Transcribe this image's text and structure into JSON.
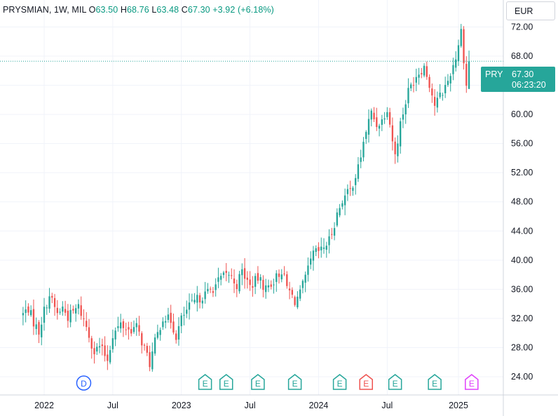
{
  "legend": {
    "symbol": "PRYSMIAN, 1W, MIL",
    "open_label": "O",
    "open": "63.50",
    "high_label": "H",
    "high": "68.76",
    "low_label": "L",
    "low": "63.48",
    "close_label": "C",
    "close": "67.30",
    "change": "+3.92 (+6.18%)"
  },
  "currency": "EUR",
  "price_tag": {
    "symbol": "PRY",
    "price": "67.30",
    "countdown": "06:23:20"
  },
  "colors": {
    "up": "#26a69a",
    "down": "#ef5350",
    "grid": "#f0f3fa",
    "axis_text": "#131722",
    "dividend": "#2962ff",
    "earnings_purple": "#e040fb"
  },
  "chart_data": {
    "type": "candlestick",
    "title": "",
    "ylim": [
      21.5,
      75.7
    ],
    "y_ticks": [
      "24.00",
      "28.00",
      "32.00",
      "36.00",
      "40.00",
      "44.00",
      "48.00",
      "52.00",
      "56.00",
      "60.00",
      "64.00",
      "68.00",
      "72.00"
    ],
    "x_ticks": [
      "2022",
      "Jul",
      "2023",
      "Jul",
      "2024",
      "Jul",
      "2025"
    ],
    "x_tick_dates": [
      "2022-01-03",
      "2022-07-04",
      "2023-01-02",
      "2023-07-03",
      "2024-01-01",
      "2024-07-01",
      "2025-01-06"
    ],
    "close_path": [
      [
        "2021-11-08",
        32.6
      ],
      [
        "2021-11-22",
        33.4
      ],
      [
        "2021-12-06",
        31.5
      ],
      [
        "2021-12-20",
        30.2
      ],
      [
        "2022-01-03",
        33.1
      ],
      [
        "2022-01-17",
        35.2
      ],
      [
        "2022-02-07",
        32.6
      ],
      [
        "2022-02-21",
        33.5
      ],
      [
        "2022-03-07",
        32.2
      ],
      [
        "2022-04-04",
        33.6
      ],
      [
        "2022-04-25",
        30.9
      ],
      [
        "2022-05-16",
        27.4
      ],
      [
        "2022-05-30",
        28.2
      ],
      [
        "2022-06-20",
        26.4
      ],
      [
        "2022-07-04",
        29.8
      ],
      [
        "2022-07-25",
        31.2
      ],
      [
        "2022-08-15",
        30.4
      ],
      [
        "2022-09-05",
        30.8
      ],
      [
        "2022-09-26",
        27.9
      ],
      [
        "2022-10-10",
        25.8
      ],
      [
        "2022-10-24",
        28.7
      ],
      [
        "2022-11-14",
        32.2
      ],
      [
        "2022-12-05",
        31.7
      ],
      [
        "2022-12-19",
        29.6
      ],
      [
        "2023-01-02",
        31.9
      ],
      [
        "2023-01-23",
        33.6
      ],
      [
        "2023-02-13",
        34.6
      ],
      [
        "2023-03-06",
        35.3
      ],
      [
        "2023-03-27",
        36.2
      ],
      [
        "2023-04-17",
        37.5
      ],
      [
        "2023-05-08",
        38.1
      ],
      [
        "2023-05-29",
        36.6
      ],
      [
        "2023-06-12",
        38.5
      ],
      [
        "2023-07-03",
        36.4
      ],
      [
        "2023-07-24",
        37.5
      ],
      [
        "2023-08-14",
        36.1
      ],
      [
        "2023-09-04",
        37.2
      ],
      [
        "2023-09-25",
        38.6
      ],
      [
        "2023-10-09",
        36.3
      ],
      [
        "2023-10-30",
        34.4
      ],
      [
        "2023-11-13",
        35.4
      ],
      [
        "2023-12-04",
        38.6
      ],
      [
        "2023-12-18",
        40.9
      ],
      [
        "2024-01-08",
        41.3
      ],
      [
        "2024-01-29",
        42.7
      ],
      [
        "2024-02-19",
        46.3
      ],
      [
        "2024-03-04",
        48.3
      ],
      [
        "2024-03-25",
        49.6
      ],
      [
        "2024-04-15",
        52.6
      ],
      [
        "2024-05-06",
        57.8
      ],
      [
        "2024-05-20",
        60.2
      ],
      [
        "2024-06-03",
        58.6
      ],
      [
        "2024-06-17",
        59.2
      ],
      [
        "2024-07-01",
        61.0
      ],
      [
        "2024-07-22",
        54.3
      ],
      [
        "2024-08-05",
        58.8
      ],
      [
        "2024-08-26",
        63.2
      ],
      [
        "2024-09-16",
        65.4
      ],
      [
        "2024-10-07",
        66.6
      ],
      [
        "2024-10-21",
        64.2
      ],
      [
        "2024-11-04",
        61.3
      ],
      [
        "2024-11-25",
        63.1
      ],
      [
        "2024-12-09",
        64.6
      ],
      [
        "2024-12-30",
        67.9
      ],
      [
        "2025-01-13",
        71.5
      ],
      [
        "2025-01-27",
        63.9
      ],
      [
        "2025-02-03",
        67.3
      ]
    ],
    "events": [
      {
        "type": "dividend",
        "label": "D",
        "date": "2022-04-18"
      },
      {
        "type": "earnings",
        "label": "E",
        "date": "2023-03-06"
      },
      {
        "type": "earnings",
        "label": "E",
        "date": "2023-05-01"
      },
      {
        "type": "earnings",
        "label": "E",
        "date": "2023-07-24"
      },
      {
        "type": "earnings",
        "label": "E",
        "date": "2023-10-30"
      },
      {
        "type": "earnings",
        "label": "E",
        "date": "2024-02-26"
      },
      {
        "type": "earnings",
        "label": "E",
        "date": "2024-05-06"
      },
      {
        "type": "earnings",
        "label": "E",
        "date": "2024-07-22"
      },
      {
        "type": "earnings",
        "label": "E",
        "date": "2024-11-04"
      },
      {
        "type": "earnings",
        "label": "E",
        "date": "2025-02-10"
      }
    ]
  }
}
